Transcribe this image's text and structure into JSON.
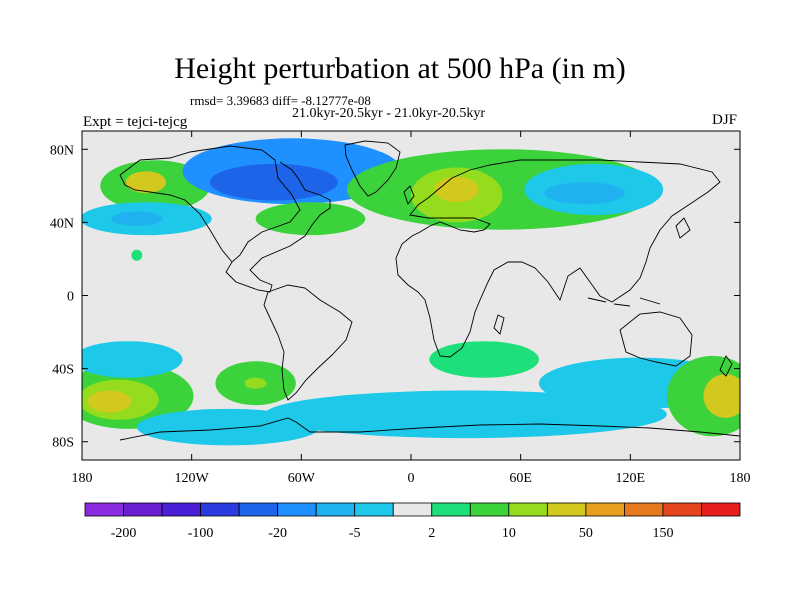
{
  "chart_data": {
    "type": "heatmap",
    "title": "Height perturbation at 500 hPa (in m)",
    "stats_line": "rmsd= 3.39683 diff= -8.12777e-08",
    "period_line": "21.0kyr-20.5kyr - 21.0kyr-20.5kyr",
    "experiment_label": "Expt = tejci-tejcg",
    "season_label": "DJF",
    "xlim": [
      -180,
      180
    ],
    "ylim": [
      -90,
      90
    ],
    "x_ticks": [
      {
        "value": -180,
        "label": "180"
      },
      {
        "value": -120,
        "label": "120W"
      },
      {
        "value": -60,
        "label": "60W"
      },
      {
        "value": 0,
        "label": "0"
      },
      {
        "value": 60,
        "label": "60E"
      },
      {
        "value": 120,
        "label": "120E"
      },
      {
        "value": 180,
        "label": "180"
      }
    ],
    "y_ticks": [
      {
        "value": 80,
        "label": "80N"
      },
      {
        "value": 40,
        "label": "40N"
      },
      {
        "value": 0,
        "label": "0"
      },
      {
        "value": -40,
        "label": "40S"
      },
      {
        "value": -80,
        "label": "80S"
      }
    ],
    "colorbar": {
      "colors": [
        "#8b2be2",
        "#6a1fd0",
        "#4b1fd8",
        "#2a3ce0",
        "#1e64e8",
        "#1e90ff",
        "#20b2f0",
        "#1ec8e8",
        "#e8e8e8",
        "#1ee07a",
        "#3cd23c",
        "#96dc1e",
        "#d2c81e",
        "#e6a01e",
        "#e6781e",
        "#e6461e",
        "#e61e1e"
      ],
      "labels": [
        {
          "boundary": 1,
          "text": "-200"
        },
        {
          "boundary": 3,
          "text": "-100"
        },
        {
          "boundary": 5,
          "text": "-20"
        },
        {
          "boundary": 7,
          "text": "-5"
        },
        {
          "boundary": 9,
          "text": "2"
        },
        {
          "boundary": 11,
          "text": "10"
        },
        {
          "boundary": 13,
          "text": "50"
        },
        {
          "boundary": 15,
          "text": "150"
        }
      ]
    },
    "anomaly_regions": [
      {
        "lon": -140,
        "lat": 60,
        "rlon": 30,
        "rlat": 14,
        "value": 9
      },
      {
        "lon": -145,
        "lat": 62,
        "rlon": 11,
        "rlat": 6,
        "value": 25
      },
      {
        "lon": -145,
        "lat": 42,
        "rlon": 36,
        "rlat": 9,
        "value": -5
      },
      {
        "lon": -150,
        "lat": 42,
        "rlon": 14,
        "rlat": 4,
        "value": -8
      },
      {
        "lon": -65,
        "lat": 68,
        "rlon": 60,
        "rlat": 18,
        "value": -12
      },
      {
        "lon": -75,
        "lat": 62,
        "rlon": 35,
        "rlat": 10,
        "value": -22
      },
      {
        "lon": -55,
        "lat": 42,
        "rlon": 30,
        "rlat": 9,
        "value": 7
      },
      {
        "lon": 50,
        "lat": 58,
        "rlon": 85,
        "rlat": 22,
        "value": 6
      },
      {
        "lon": 25,
        "lat": 55,
        "rlon": 25,
        "rlat": 15,
        "value": 14
      },
      {
        "lon": 25,
        "lat": 58,
        "rlon": 12,
        "rlat": 7,
        "value": 22
      },
      {
        "lon": 100,
        "lat": 58,
        "rlon": 38,
        "rlat": 14,
        "value": -5
      },
      {
        "lon": 95,
        "lat": 56,
        "rlon": 22,
        "rlat": 6,
        "value": -9
      },
      {
        "lon": -150,
        "lat": 22,
        "rlon": 3,
        "rlat": 3,
        "value": 4
      },
      {
        "lon": -155,
        "lat": -55,
        "rlon": 36,
        "rlat": 18,
        "value": 7
      },
      {
        "lon": -160,
        "lat": -57,
        "rlon": 22,
        "rlat": 11,
        "value": 15
      },
      {
        "lon": -165,
        "lat": -58,
        "rlon": 12,
        "rlat": 6,
        "value": 35
      },
      {
        "lon": -155,
        "lat": -35,
        "rlon": 30,
        "rlat": 10,
        "value": -5
      },
      {
        "lon": -100,
        "lat": -72,
        "rlon": 50,
        "rlat": 10,
        "value": -4
      },
      {
        "lon": -85,
        "lat": -48,
        "rlon": 22,
        "rlat": 12,
        "value": 6
      },
      {
        "lon": -85,
        "lat": -48,
        "rlon": 6,
        "rlat": 3,
        "value": 18
      },
      {
        "lon": 30,
        "lat": -65,
        "rlon": 110,
        "rlat": 13,
        "value": -5
      },
      {
        "lon": 40,
        "lat": -35,
        "rlon": 30,
        "rlat": 10,
        "value": 4
      },
      {
        "lon": 125,
        "lat": -48,
        "rlon": 55,
        "rlat": 14,
        "value": -5
      },
      {
        "lon": 165,
        "lat": -55,
        "rlon": 25,
        "rlat": 22,
        "value": 8
      },
      {
        "lon": 172,
        "lat": -55,
        "rlon": 12,
        "rlat": 12,
        "value": 25
      }
    ],
    "grid": false,
    "legend_placement": "bottom"
  }
}
